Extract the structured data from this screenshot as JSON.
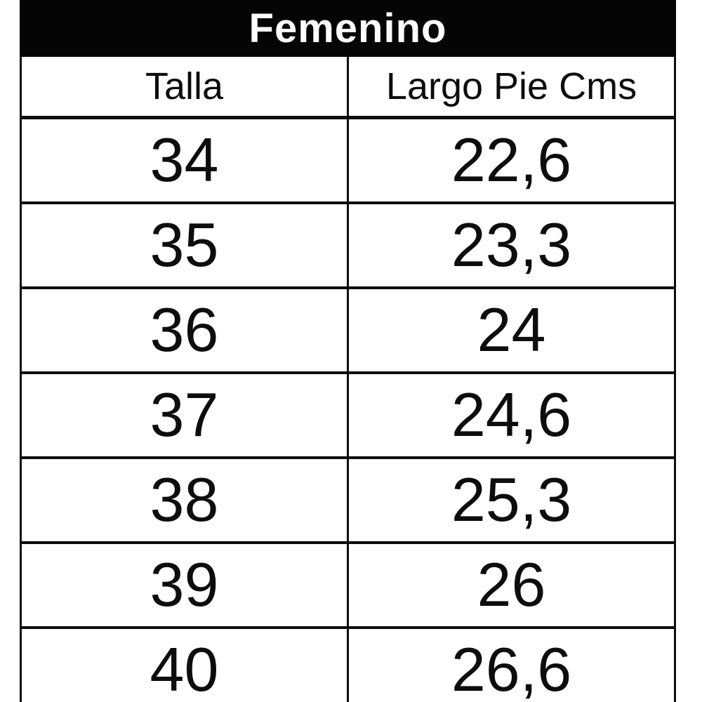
{
  "chart_data": {
    "type": "table",
    "title": "Femenino",
    "columns": [
      "Talla",
      "Largo Pie Cms"
    ],
    "rows": [
      [
        "34",
        "22,6"
      ],
      [
        "35",
        "23,3"
      ],
      [
        "36",
        "24"
      ],
      [
        "37",
        "24,6"
      ],
      [
        "38",
        "25,3"
      ],
      [
        "39",
        "26"
      ],
      [
        "40",
        "26,6"
      ]
    ],
    "layout_hints": {
      "last_row_clipped_at_bottom": true,
      "grid": "on"
    }
  },
  "colors": {
    "title_background": "#050505",
    "title_text": "#fdfdfd",
    "border": "#0d0d0d",
    "cell_text": "#0d0d0d",
    "page_background": "#ffffff"
  }
}
